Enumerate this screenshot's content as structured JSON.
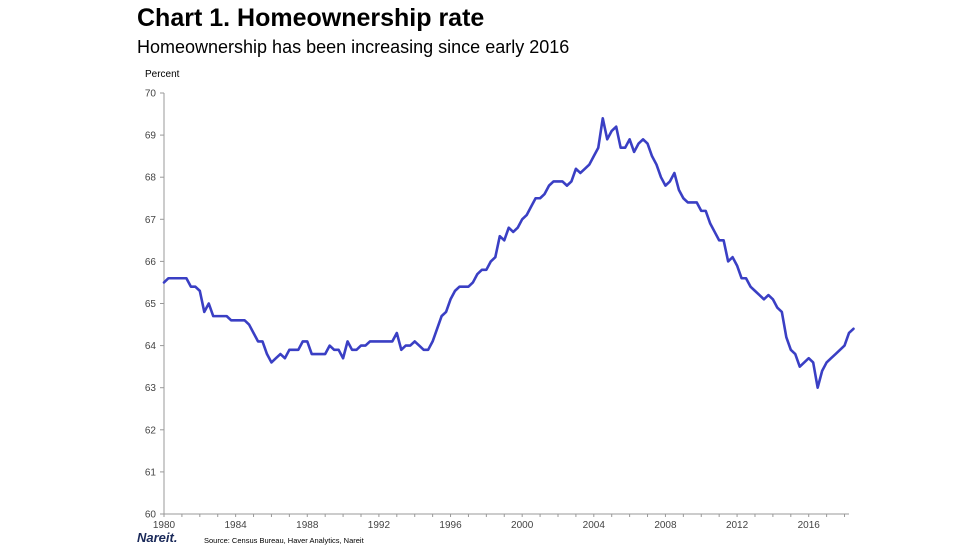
{
  "header": {
    "title": "Chart 1. Homeownership rate",
    "subtitle": "Homeownership has been increasing since early 2016"
  },
  "footer": {
    "logo": "Nareit.",
    "source": "Source:  Census Bureau,  Haver Analytics, Nareit"
  },
  "colors": {
    "line": "#3a3fc4",
    "axis": "#999999"
  },
  "chart_data": {
    "type": "line",
    "title": "Chart 1. Homeownership rate",
    "subtitle": "Homeownership has been increasing since early 2016",
    "ylabel": "Percent",
    "xlabel": "",
    "ylim": [
      60,
      70
    ],
    "xlim": [
      1980,
      2018.25
    ],
    "y_ticks": [
      60,
      61,
      62,
      63,
      64,
      65,
      66,
      67,
      68,
      69,
      70
    ],
    "x_ticks": [
      1980,
      1984,
      1988,
      1992,
      1996,
      2000,
      2004,
      2008,
      2012,
      2016
    ],
    "grid": false,
    "legend": "none",
    "series": [
      {
        "name": "",
        "points": [
          [
            1980.0,
            65.5
          ],
          [
            1980.25,
            65.6
          ],
          [
            1980.5,
            65.6
          ],
          [
            1980.75,
            65.6
          ],
          [
            1981.0,
            65.6
          ],
          [
            1981.25,
            65.6
          ],
          [
            1981.5,
            65.4
          ],
          [
            1981.75,
            65.4
          ],
          [
            1982.0,
            65.3
          ],
          [
            1982.25,
            64.8
          ],
          [
            1982.5,
            65.0
          ],
          [
            1982.75,
            64.7
          ],
          [
            1983.0,
            64.7
          ],
          [
            1983.25,
            64.7
          ],
          [
            1983.5,
            64.7
          ],
          [
            1983.75,
            64.6
          ],
          [
            1984.0,
            64.6
          ],
          [
            1984.25,
            64.6
          ],
          [
            1984.5,
            64.6
          ],
          [
            1984.75,
            64.5
          ],
          [
            1985.0,
            64.3
          ],
          [
            1985.25,
            64.1
          ],
          [
            1985.5,
            64.1
          ],
          [
            1985.75,
            63.8
          ],
          [
            1986.0,
            63.6
          ],
          [
            1986.25,
            63.7
          ],
          [
            1986.5,
            63.8
          ],
          [
            1986.75,
            63.7
          ],
          [
            1987.0,
            63.9
          ],
          [
            1987.25,
            63.9
          ],
          [
            1987.5,
            63.9
          ],
          [
            1987.75,
            64.1
          ],
          [
            1988.0,
            64.1
          ],
          [
            1988.25,
            63.8
          ],
          [
            1988.5,
            63.8
          ],
          [
            1988.75,
            63.8
          ],
          [
            1989.0,
            63.8
          ],
          [
            1989.25,
            64.0
          ],
          [
            1989.5,
            63.9
          ],
          [
            1989.75,
            63.9
          ],
          [
            1990.0,
            63.7
          ],
          [
            1990.25,
            64.1
          ],
          [
            1990.5,
            63.9
          ],
          [
            1990.75,
            63.9
          ],
          [
            1991.0,
            64.0
          ],
          [
            1991.25,
            64.0
          ],
          [
            1991.5,
            64.1
          ],
          [
            1991.75,
            64.1
          ],
          [
            1992.0,
            64.1
          ],
          [
            1992.25,
            64.1
          ],
          [
            1992.5,
            64.1
          ],
          [
            1992.75,
            64.1
          ],
          [
            1993.0,
            64.3
          ],
          [
            1993.25,
            63.9
          ],
          [
            1993.5,
            64.0
          ],
          [
            1993.75,
            64.0
          ],
          [
            1994.0,
            64.1
          ],
          [
            1994.25,
            64.0
          ],
          [
            1994.5,
            63.9
          ],
          [
            1994.75,
            63.9
          ],
          [
            1995.0,
            64.1
          ],
          [
            1995.25,
            64.4
          ],
          [
            1995.5,
            64.7
          ],
          [
            1995.75,
            64.8
          ],
          [
            1996.0,
            65.1
          ],
          [
            1996.25,
            65.3
          ],
          [
            1996.5,
            65.4
          ],
          [
            1996.75,
            65.4
          ],
          [
            1997.0,
            65.4
          ],
          [
            1997.25,
            65.5
          ],
          [
            1997.5,
            65.7
          ],
          [
            1997.75,
            65.8
          ],
          [
            1998.0,
            65.8
          ],
          [
            1998.25,
            66.0
          ],
          [
            1998.5,
            66.1
          ],
          [
            1998.75,
            66.6
          ],
          [
            1999.0,
            66.5
          ],
          [
            1999.25,
            66.8
          ],
          [
            1999.5,
            66.7
          ],
          [
            1999.75,
            66.8
          ],
          [
            2000.0,
            67.0
          ],
          [
            2000.25,
            67.1
          ],
          [
            2000.5,
            67.3
          ],
          [
            2000.75,
            67.5
          ],
          [
            2001.0,
            67.5
          ],
          [
            2001.25,
            67.6
          ],
          [
            2001.5,
            67.8
          ],
          [
            2001.75,
            67.9
          ],
          [
            2002.0,
            67.9
          ],
          [
            2002.25,
            67.9
          ],
          [
            2002.5,
            67.8
          ],
          [
            2002.75,
            67.9
          ],
          [
            2003.0,
            68.2
          ],
          [
            2003.25,
            68.1
          ],
          [
            2003.5,
            68.2
          ],
          [
            2003.75,
            68.3
          ],
          [
            2004.0,
            68.5
          ],
          [
            2004.25,
            68.7
          ],
          [
            2004.5,
            69.4
          ],
          [
            2004.75,
            68.9
          ],
          [
            2005.0,
            69.1
          ],
          [
            2005.25,
            69.2
          ],
          [
            2005.5,
            68.7
          ],
          [
            2005.75,
            68.7
          ],
          [
            2006.0,
            68.9
          ],
          [
            2006.25,
            68.6
          ],
          [
            2006.5,
            68.8
          ],
          [
            2006.75,
            68.9
          ],
          [
            2007.0,
            68.8
          ],
          [
            2007.25,
            68.5
          ],
          [
            2007.5,
            68.3
          ],
          [
            2007.75,
            68.0
          ],
          [
            2008.0,
            67.8
          ],
          [
            2008.25,
            67.9
          ],
          [
            2008.5,
            68.1
          ],
          [
            2008.75,
            67.7
          ],
          [
            2009.0,
            67.5
          ],
          [
            2009.25,
            67.4
          ],
          [
            2009.5,
            67.4
          ],
          [
            2009.75,
            67.4
          ],
          [
            2010.0,
            67.2
          ],
          [
            2010.25,
            67.2
          ],
          [
            2010.5,
            66.9
          ],
          [
            2010.75,
            66.7
          ],
          [
            2011.0,
            66.5
          ],
          [
            2011.25,
            66.5
          ],
          [
            2011.5,
            66.0
          ],
          [
            2011.75,
            66.1
          ],
          [
            2012.0,
            65.9
          ],
          [
            2012.25,
            65.6
          ],
          [
            2012.5,
            65.6
          ],
          [
            2012.75,
            65.4
          ],
          [
            2013.0,
            65.3
          ],
          [
            2013.25,
            65.2
          ],
          [
            2013.5,
            65.1
          ],
          [
            2013.75,
            65.2
          ],
          [
            2014.0,
            65.1
          ],
          [
            2014.25,
            64.9
          ],
          [
            2014.5,
            64.8
          ],
          [
            2014.75,
            64.2
          ],
          [
            2015.0,
            63.9
          ],
          [
            2015.25,
            63.8
          ],
          [
            2015.5,
            63.5
          ],
          [
            2015.75,
            63.6
          ],
          [
            2016.0,
            63.7
          ],
          [
            2016.25,
            63.6
          ],
          [
            2016.5,
            63.0
          ],
          [
            2016.75,
            63.4
          ],
          [
            2017.0,
            63.6
          ],
          [
            2017.25,
            63.7
          ],
          [
            2017.5,
            63.8
          ],
          [
            2017.75,
            63.9
          ],
          [
            2018.0,
            64.0
          ],
          [
            2018.25,
            64.3
          ],
          [
            2018.5,
            64.4
          ]
        ]
      }
    ]
  }
}
